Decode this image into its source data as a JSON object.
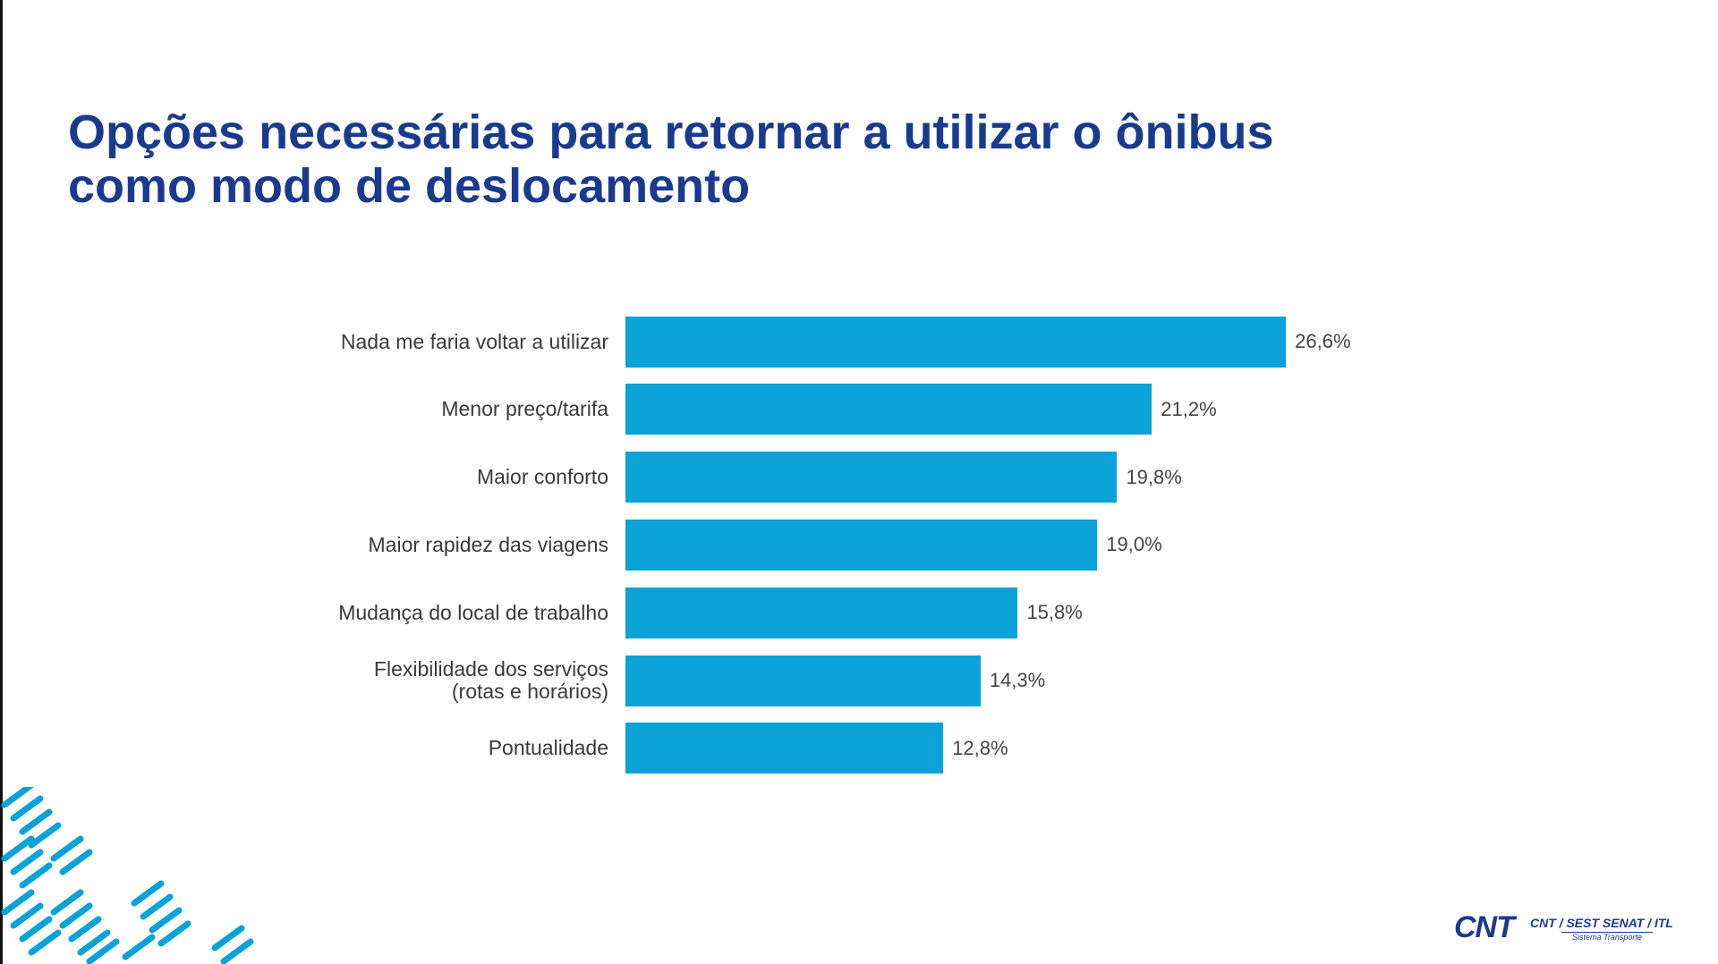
{
  "chart_data": {
    "type": "bar",
    "orientation": "horizontal",
    "title": "Opções necessárias para retornar a utilizar o ônibus como modo de deslocamento",
    "categories": [
      "Nada me faria voltar a utilizar",
      "Menor preço/tarifa",
      "Maior conforto",
      "Maior rapidez das viagens",
      "Mudança do local de trabalho",
      "Flexibilidade dos serviços\n(rotas e horários)",
      "Pontualidade"
    ],
    "values": [
      26.6,
      21.2,
      19.8,
      19.0,
      15.8,
      14.3,
      12.8
    ],
    "value_labels": [
      "26,6%",
      "21,2%",
      "19,8%",
      "19,0%",
      "15,8%",
      "14,3%",
      "12,8%"
    ],
    "color": "#0aa2d7"
  },
  "logo": {
    "mark": "CNT",
    "text": "CNT / SEST SENAT / ITL",
    "subtext": "Sistema Transporte"
  }
}
